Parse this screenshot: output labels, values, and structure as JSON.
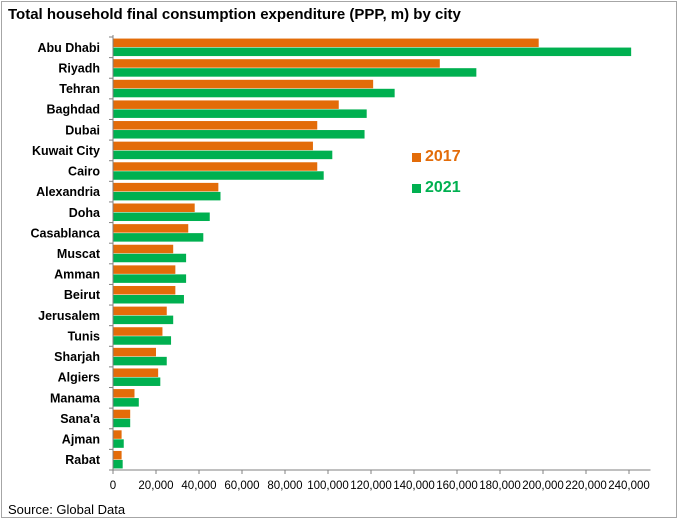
{
  "title": "Total household final consumption  expenditure (PPP, m) by city",
  "source": "Source: Global Data",
  "colors": {
    "s2017": "#e36c09",
    "s2021": "#00b050",
    "axis": "#808080"
  },
  "chart_data": {
    "type": "bar",
    "orientation": "horizontal",
    "title": "Total household final consumption  expenditure (PPP, m) by city",
    "categories": [
      "Abu Dhabi",
      "Riyadh",
      "Tehran",
      "Baghdad",
      "Dubai",
      "Kuwait City",
      "Cairo",
      "Alexandria",
      "Doha",
      "Casablanca",
      "Muscat",
      "Amman",
      "Beirut",
      "Jerusalem",
      "Tunis",
      "Sharjah",
      "Algiers",
      "Manama",
      "Sana'a",
      "Ajman",
      "Rabat"
    ],
    "series": [
      {
        "name": "2017",
        "values": [
          198000,
          152000,
          121000,
          105000,
          95000,
          93000,
          95000,
          49000,
          38000,
          35000,
          28000,
          29000,
          29000,
          25000,
          23000,
          20000,
          21000,
          10000,
          8000,
          4000,
          4000
        ]
      },
      {
        "name": "2021",
        "values": [
          241000,
          169000,
          131000,
          118000,
          117000,
          102000,
          98000,
          50000,
          45000,
          42000,
          34000,
          34000,
          33000,
          28000,
          27000,
          25000,
          22000,
          12000,
          8000,
          5000,
          4500
        ]
      }
    ],
    "x_ticks": [
      "0",
      "20,000",
      "40,000",
      "60,000",
      "80,000",
      "100,000",
      "120,000",
      "140,000",
      "160,000",
      "180,000",
      "200,000",
      "220,000",
      "240,000"
    ],
    "xlim": [
      0,
      250000
    ],
    "legend_position": "right-middle",
    "grid": false
  }
}
